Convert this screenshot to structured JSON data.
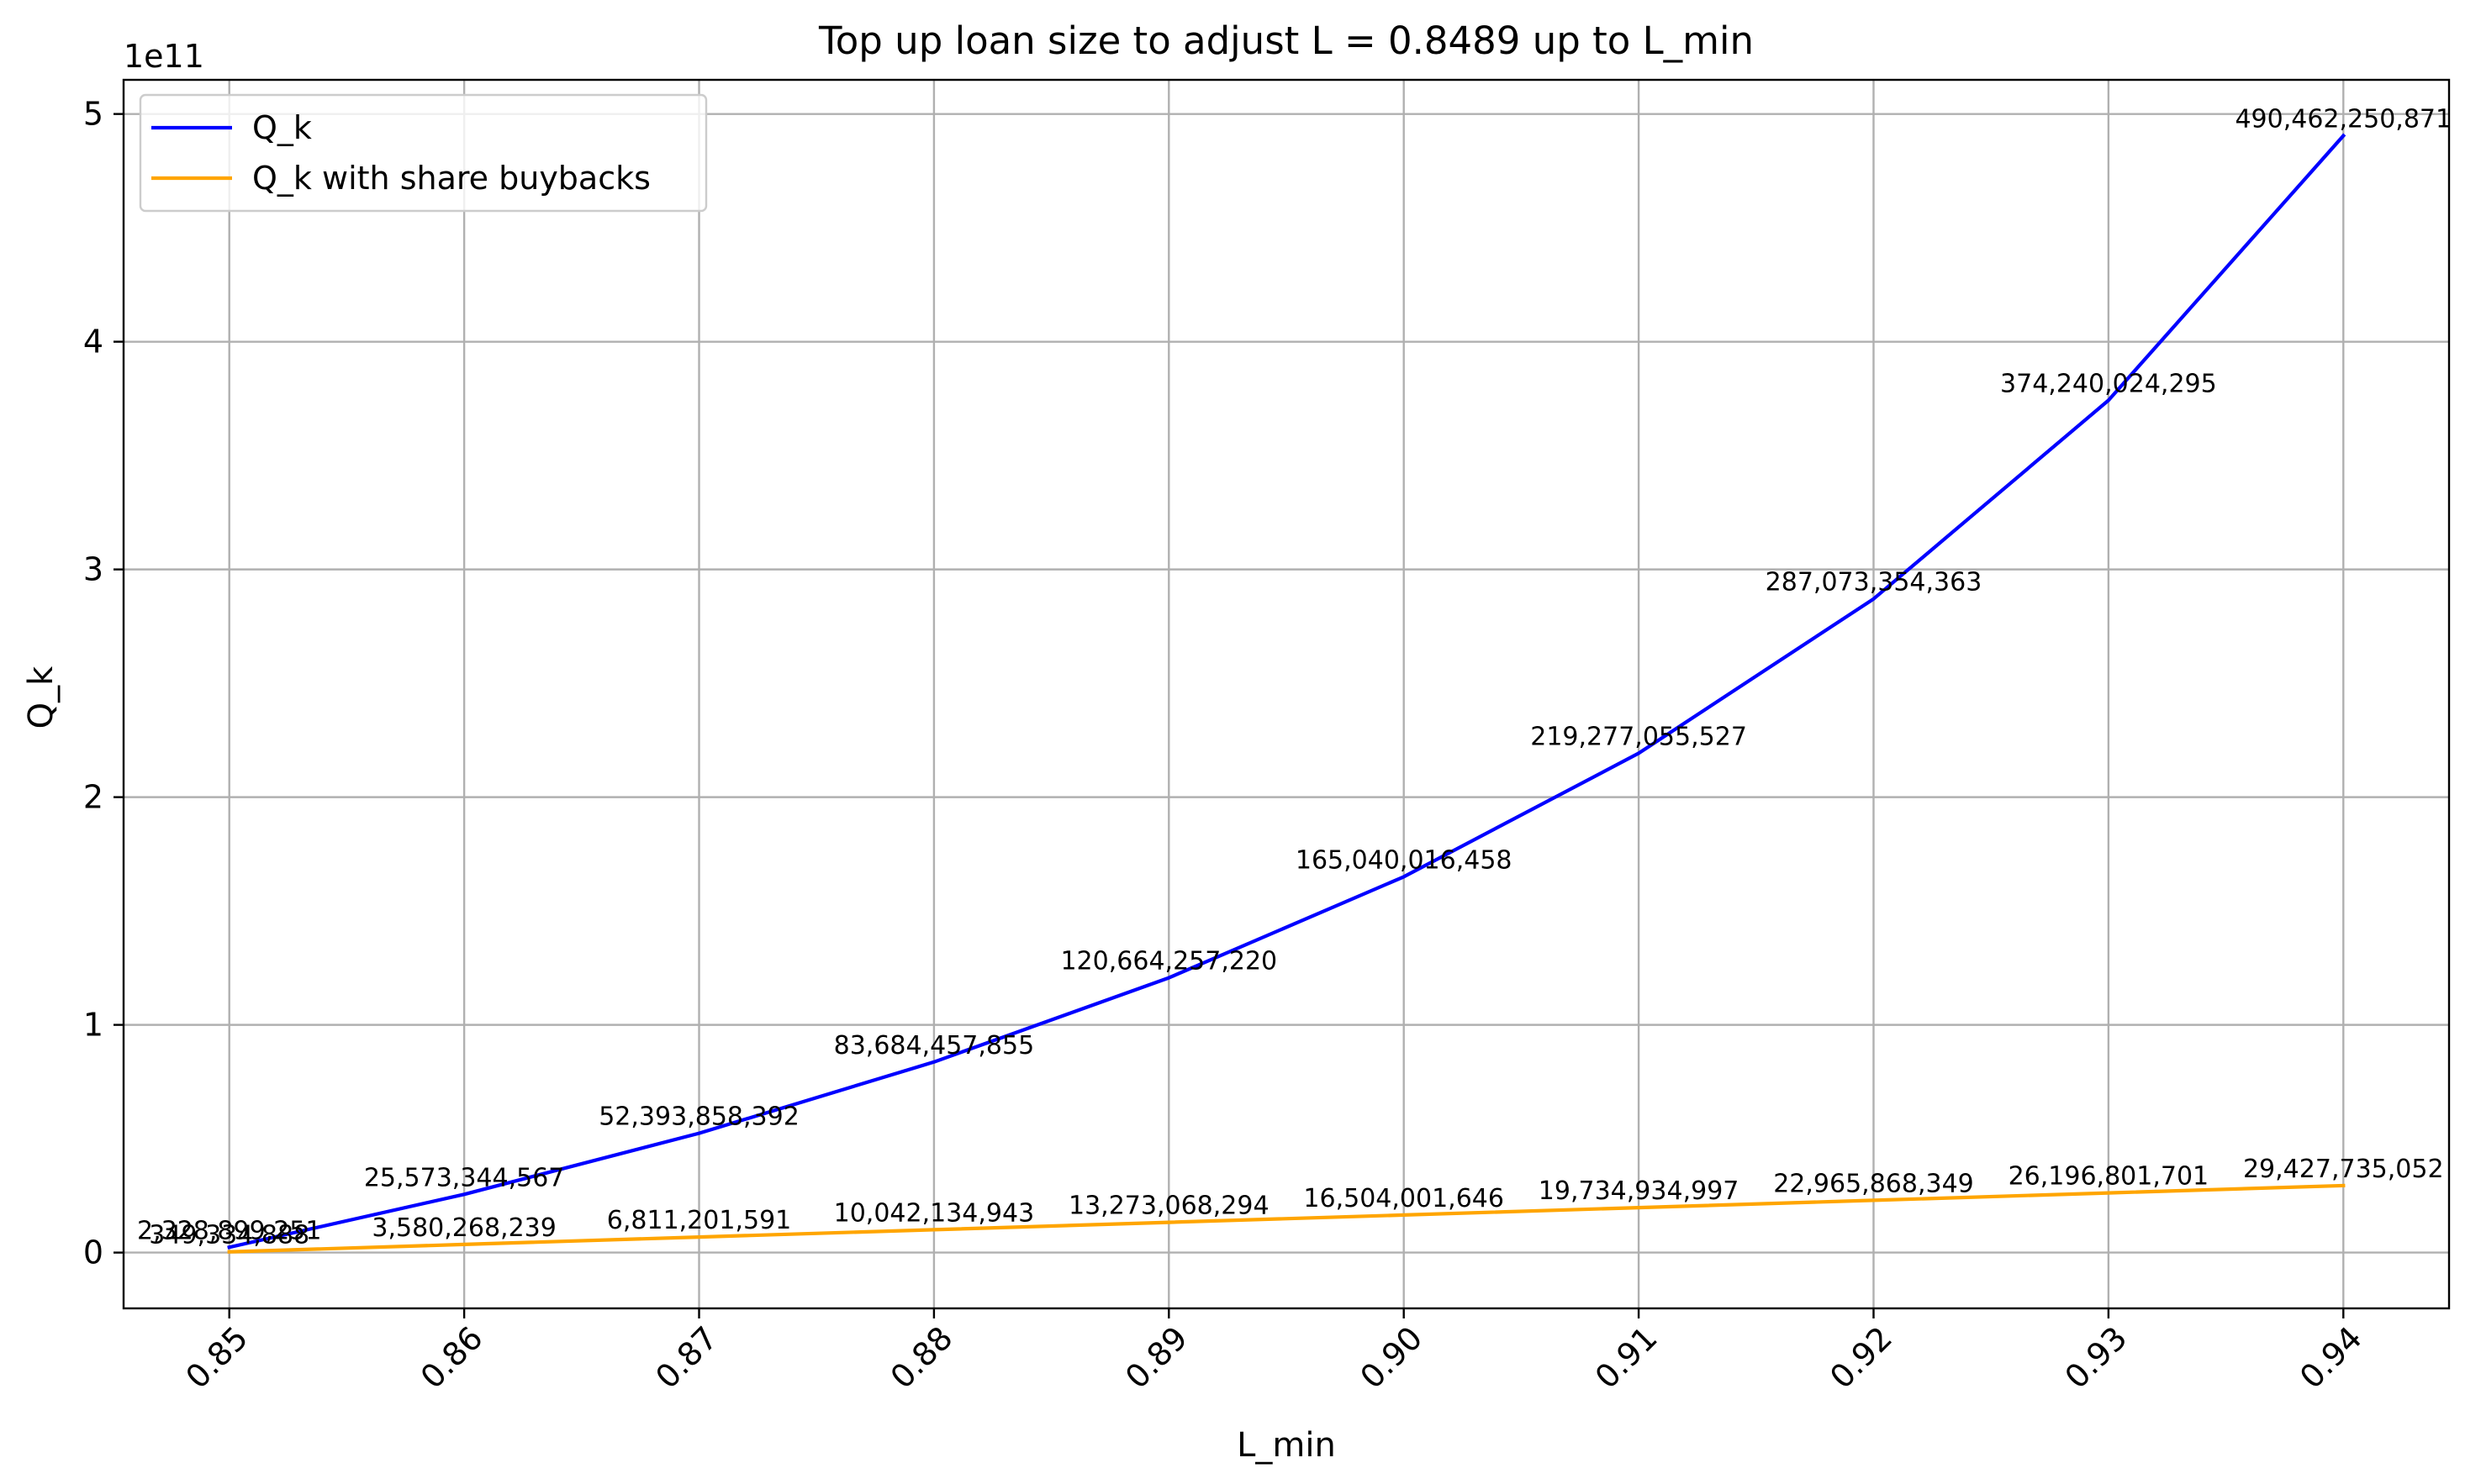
{
  "chart_data": {
    "type": "line",
    "title": "Top up loan size to adjust L = 0.8489 up to L_min",
    "xlabel": "L_min",
    "ylabel": "Q_k",
    "y_offset_text": "1e11",
    "x": [
      0.85,
      0.86,
      0.87,
      0.88,
      0.89,
      0.9,
      0.91,
      0.92,
      0.93,
      0.94
    ],
    "x_tick_labels": [
      "0.85",
      "0.86",
      "0.87",
      "0.88",
      "0.89",
      "0.90",
      "0.91",
      "0.92",
      "0.93",
      "0.94"
    ],
    "y_ticks": [
      0,
      1,
      2,
      3,
      4,
      5
    ],
    "y_tick_labels": [
      "0",
      "1",
      "2",
      "3",
      "4",
      "5"
    ],
    "xlim": [
      0.8455,
      0.9445
    ],
    "ylim": [
      -24500000000.0,
      515000000000.0
    ],
    "grid": true,
    "legend_position": "upper-left",
    "series": [
      {
        "name": "Q_k",
        "color": "#0000ff",
        "values": [
          2328899251,
          25573344567,
          52393858392,
          83684457855,
          120664257220,
          165040016458,
          219277055527,
          287073354363,
          374240024295,
          490462250871
        ],
        "labels": [
          "2,328,899,251",
          "25,573,344,567",
          "52,393,858,392",
          "83,684,457,855",
          "120,664,257,220",
          "165,040,016,458",
          "219,277,055,527",
          "287,073,354,363",
          "374,240,024,295",
          "490,462,250,871"
        ]
      },
      {
        "name": "Q_k with share buybacks",
        "color": "#ffa500",
        "values": [
          349334888,
          3580268239,
          6811201591,
          10042134943,
          13273068294,
          16504001646,
          19734934997,
          22965868349,
          26196801701,
          29427735052
        ],
        "labels": [
          "349,334,888",
          "3,580,268,239",
          "6,811,201,591",
          "10,042,134,943",
          "13,273,068,294",
          "16,504,001,646",
          "19,734,934,997",
          "22,965,868,349",
          "26,196,801,701",
          "29,427,735,052"
        ]
      }
    ]
  }
}
